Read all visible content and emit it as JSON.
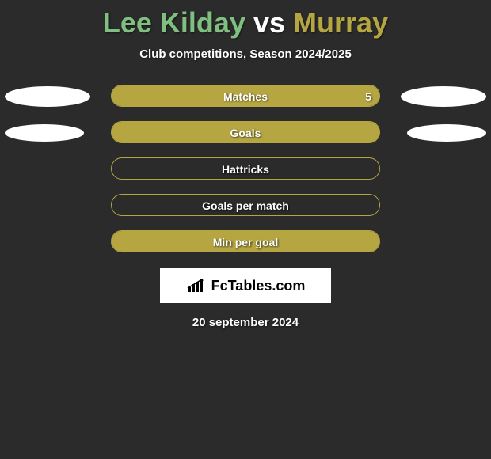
{
  "title": {
    "player1": "Lee Kilday",
    "vs": "vs",
    "player2": "Murray",
    "player1_color": "#7fbf7f",
    "vs_color": "#ffffff",
    "player2_color": "#b5a642"
  },
  "subtitle": "Club competitions, Season 2024/2025",
  "bar_color": "#b5a642",
  "ellipse_color": "#ffffff",
  "background_color": "#2b2b2b",
  "rows": [
    {
      "label": "Matches",
      "value_right": "5",
      "fill_percent": 100,
      "left_ellipse_w": 108,
      "left_ellipse_h": 26,
      "right_ellipse_w": 108,
      "right_ellipse_h": 26,
      "show_value_right": true
    },
    {
      "label": "Goals",
      "fill_percent": 100,
      "left_ellipse_w": 100,
      "left_ellipse_h": 22,
      "right_ellipse_w": 100,
      "right_ellipse_h": 22,
      "show_value_right": false
    },
    {
      "label": "Hattricks",
      "fill_percent": 0,
      "left_ellipse_w": 0,
      "left_ellipse_h": 0,
      "right_ellipse_w": 0,
      "right_ellipse_h": 0,
      "show_value_right": false
    },
    {
      "label": "Goals per match",
      "fill_percent": 0,
      "left_ellipse_w": 0,
      "left_ellipse_h": 0,
      "right_ellipse_w": 0,
      "right_ellipse_h": 0,
      "show_value_right": false
    },
    {
      "label": "Min per goal",
      "fill_percent": 100,
      "left_ellipse_w": 0,
      "left_ellipse_h": 0,
      "right_ellipse_w": 0,
      "right_ellipse_h": 0,
      "show_value_right": false
    }
  ],
  "logo_text": "FcTables.com",
  "date": "20 september 2024"
}
